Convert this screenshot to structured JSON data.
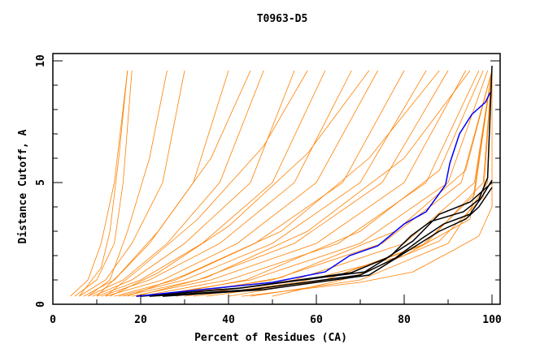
{
  "chart_data": {
    "type": "line",
    "title": "T0963-D5",
    "xlabel": "Percent of Residues (CA)",
    "ylabel": "Distance Cutoff, A",
    "xlim": [
      0,
      100
    ],
    "ylim": [
      0,
      10
    ],
    "xticks": [
      "0",
      "20",
      "40",
      "60",
      "80",
      "100"
    ],
    "xtick_values": [
      0,
      20,
      40,
      60,
      80,
      100
    ],
    "yticks": [
      "0",
      "5",
      "10"
    ],
    "ytick_values": [
      0,
      5,
      10
    ],
    "colors": {
      "other": "#ff8000",
      "highlight": "#0000ff",
      "reference": "#000000"
    },
    "series": [
      {
        "name": "orange",
        "color": "#ff8000",
        "curves": [
          [
            [
              4,
              0.33
            ],
            [
              8,
              1
            ],
            [
              11,
              2.5
            ],
            [
              14,
              5
            ],
            [
              17,
              9.6
            ]
          ],
          [
            [
              5,
              0.33
            ],
            [
              10,
              1
            ],
            [
              14,
              2.5
            ],
            [
              16,
              5
            ],
            [
              18,
              9.6
            ]
          ],
          [
            [
              6,
              0.33
            ],
            [
              12,
              1
            ],
            [
              18,
              2.5
            ],
            [
              25,
              5
            ],
            [
              30,
              9.6
            ]
          ],
          [
            [
              7,
              0.33
            ],
            [
              14,
              1
            ],
            [
              22,
              2.5
            ],
            [
              32,
              5
            ],
            [
              40,
              9.6
            ]
          ],
          [
            [
              8,
              0.33
            ],
            [
              16,
              1
            ],
            [
              26,
              2.5
            ],
            [
              38,
              5
            ],
            [
              48,
              9.6
            ]
          ],
          [
            [
              9,
              0.33
            ],
            [
              18,
              1
            ],
            [
              30,
              2.5
            ],
            [
              45,
              5
            ],
            [
              55,
              9.6
            ]
          ],
          [
            [
              10,
              0.33
            ],
            [
              20,
              1
            ],
            [
              34,
              2.5
            ],
            [
              50,
              5
            ],
            [
              62,
              9.6
            ]
          ],
          [
            [
              11,
              0.33
            ],
            [
              22,
              1
            ],
            [
              38,
              2.5
            ],
            [
              55,
              5
            ],
            [
              68,
              9.6
            ]
          ],
          [
            [
              12,
              0.33
            ],
            [
              25,
              1
            ],
            [
              42,
              2.5
            ],
            [
              60,
              5
            ],
            [
              74,
              9.6
            ]
          ],
          [
            [
              14,
              0.33
            ],
            [
              28,
              1
            ],
            [
              46,
              2.5
            ],
            [
              66,
              5
            ],
            [
              80,
              9.6
            ]
          ],
          [
            [
              15,
              0.33
            ],
            [
              30,
              1
            ],
            [
              50,
              2.5
            ],
            [
              70,
              5
            ],
            [
              85,
              9.6
            ]
          ],
          [
            [
              16,
              0.33
            ],
            [
              33,
              1
            ],
            [
              55,
              2.5
            ],
            [
              75,
              5
            ],
            [
              90,
              9.6
            ]
          ],
          [
            [
              18,
              0.33
            ],
            [
              36,
              1
            ],
            [
              60,
              2.5
            ],
            [
              80,
              5
            ],
            [
              94,
              9.6
            ]
          ],
          [
            [
              20,
              0.33
            ],
            [
              40,
              1
            ],
            [
              65,
              2.5
            ],
            [
              85,
              5
            ],
            [
              97,
              9.6
            ]
          ],
          [
            [
              22,
              0.33
            ],
            [
              45,
              1
            ],
            [
              70,
              2.5
            ],
            [
              90,
              5
            ],
            [
              99,
              9.6
            ]
          ],
          [
            [
              25,
              0.33
            ],
            [
              50,
              1
            ],
            [
              75,
              2.5
            ],
            [
              93,
              5
            ],
            [
              100,
              9.6
            ]
          ],
          [
            [
              30,
              0.33
            ],
            [
              55,
              1
            ],
            [
              80,
              2.5
            ],
            [
              96,
              5
            ],
            [
              100,
              9.6
            ]
          ],
          [
            [
              35,
              0.33
            ],
            [
              62,
              1
            ],
            [
              85,
              2.5
            ],
            [
              98,
              5
            ],
            [
              100,
              9.6
            ]
          ],
          [
            [
              45,
              0.33
            ],
            [
              70,
              1
            ],
            [
              90,
              2.5
            ],
            [
              99,
              5
            ],
            [
              100,
              9.6
            ]
          ],
          [
            [
              43,
              0.33
            ],
            [
              70,
              0.9
            ],
            [
              82,
              1.33
            ],
            [
              91,
              2.2
            ],
            [
              97,
              2.8
            ],
            [
              100,
              4
            ],
            [
              100,
              9.6
            ]
          ],
          [
            [
              6,
              0.33
            ],
            [
              11,
              1.5
            ],
            [
              13,
              3
            ],
            [
              15,
              6
            ],
            [
              17,
              9.6
            ]
          ],
          [
            [
              8,
              0.33
            ],
            [
              13,
              1
            ],
            [
              17,
              3
            ],
            [
              22,
              6
            ],
            [
              26,
              9.6
            ]
          ],
          [
            [
              10,
              0.33
            ],
            [
              15,
              1.2
            ],
            [
              24,
              3
            ],
            [
              36,
              6
            ],
            [
              45,
              9.6
            ]
          ],
          [
            [
              12,
              0.33
            ],
            [
              20,
              1.5
            ],
            [
              33,
              3.5
            ],
            [
              48,
              6.5
            ],
            [
              58,
              9.6
            ]
          ],
          [
            [
              13,
              0.33
            ],
            [
              24,
              1.3
            ],
            [
              40,
              3.2
            ],
            [
              58,
              6.2
            ],
            [
              72,
              9.6
            ]
          ],
          [
            [
              17,
              0.33
            ],
            [
              30,
              1.2
            ],
            [
              52,
              3
            ],
            [
              72,
              6
            ],
            [
              88,
              9.6
            ]
          ],
          [
            [
              19,
              0.33
            ],
            [
              35,
              1.1
            ],
            [
              58,
              3
            ],
            [
              80,
              6
            ],
            [
              95,
              9.6
            ]
          ],
          [
            [
              24,
              0.33
            ],
            [
              44,
              1
            ],
            [
              70,
              3
            ],
            [
              88,
              5.5
            ],
            [
              98,
              9.6
            ]
          ],
          [
            [
              28,
              0.33
            ],
            [
              52,
              1.1
            ],
            [
              78,
              3
            ],
            [
              94,
              5.5
            ],
            [
              100,
              9.6
            ]
          ],
          [
            [
              40,
              0.33
            ],
            [
              62,
              1
            ],
            [
              84,
              2.4
            ],
            [
              96,
              4.5
            ],
            [
              100,
              9.6
            ]
          ],
          [
            [
              32,
              0.33
            ],
            [
              56,
              0.9
            ],
            [
              80,
              2
            ],
            [
              95,
              3.5
            ],
            [
              100,
              9.6
            ]
          ],
          [
            [
              50,
              0.33
            ],
            [
              68,
              1.1
            ],
            [
              88,
              2.6
            ],
            [
              98,
              4.4
            ],
            [
              100,
              9.6
            ]
          ]
        ]
      },
      {
        "name": "black",
        "color": "#000000",
        "curves": [
          [
            [
              19,
              0.33
            ],
            [
              43,
              0.67
            ],
            [
              71,
              1.33
            ],
            [
              77,
              2
            ],
            [
              81.5,
              2.8
            ],
            [
              86,
              3.4
            ],
            [
              93.5,
              3.8
            ],
            [
              97,
              4.3
            ],
            [
              99,
              5.2
            ],
            [
              100,
              9.8
            ]
          ],
          [
            [
              22,
              0.33
            ],
            [
              45,
              0.6
            ],
            [
              70,
              1.2
            ],
            [
              78,
              1.9
            ],
            [
              84,
              2.7
            ],
            [
              89,
              3.3
            ],
            [
              95,
              3.7
            ],
            [
              98,
              4.5
            ],
            [
              100,
              5.1
            ]
          ],
          [
            [
              25,
              0.33
            ],
            [
              48,
              0.6
            ],
            [
              72,
              1.2
            ],
            [
              80,
              2.1
            ],
            [
              88,
              3
            ],
            [
              94,
              3.5
            ],
            [
              97,
              4
            ],
            [
              100,
              4.8
            ]
          ],
          [
            [
              20,
              0.33
            ],
            [
              42,
              0.65
            ],
            [
              68,
              1.3
            ],
            [
              76,
              1.9
            ],
            [
              82,
              2.6
            ],
            [
              88,
              3.7
            ],
            [
              95,
              4.2
            ],
            [
              100,
              5
            ]
          ]
        ]
      },
      {
        "name": "blue",
        "color": "#0000ff",
        "curves": [
          [
            [
              19,
              0.33
            ],
            [
              50,
              0.9
            ],
            [
              62,
              1.33
            ],
            [
              67.6,
              2
            ],
            [
              74,
              2.4
            ],
            [
              80,
              3.3
            ],
            [
              85,
              3.8
            ],
            [
              89.4,
              4.9
            ],
            [
              90.4,
              5.8
            ],
            [
              92.6,
              7
            ],
            [
              95.4,
              7.8
            ],
            [
              98.5,
              8.3
            ],
            [
              99.6,
              8.7
            ]
          ]
        ]
      }
    ]
  }
}
